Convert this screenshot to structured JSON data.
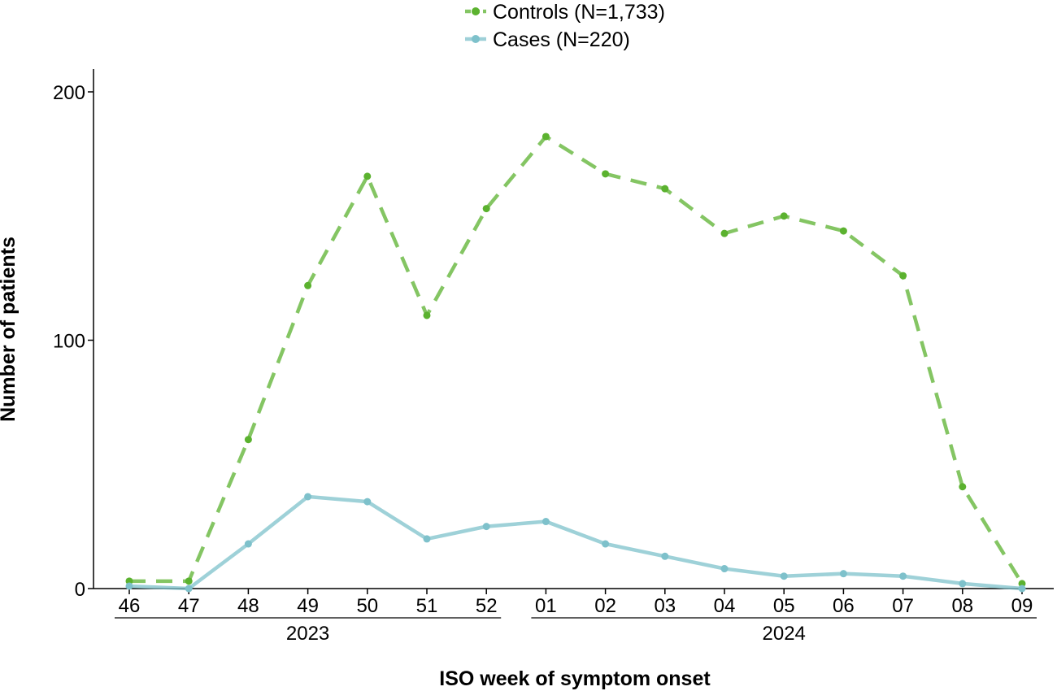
{
  "chart_data": {
    "type": "line",
    "xlabel": "ISO week of symptom onset",
    "ylabel": "Number of patients",
    "ylim": [
      0,
      200
    ],
    "yticks": [
      0,
      100,
      200
    ],
    "categories": [
      "46",
      "47",
      "48",
      "49",
      "50",
      "51",
      "52",
      "01",
      "02",
      "03",
      "04",
      "05",
      "06",
      "07",
      "08",
      "09"
    ],
    "year_groups": [
      {
        "label": "2023",
        "first": "46",
        "last": "52"
      },
      {
        "label": "2024",
        "first": "01",
        "last": "09"
      }
    ],
    "grid": false,
    "legend_position": "top-center",
    "series": [
      {
        "name": "Controls (N=1,733)",
        "color": "#5bb22f",
        "style": "dashed",
        "values": [
          3,
          3,
          60,
          122,
          166,
          110,
          153,
          182,
          167,
          161,
          143,
          150,
          144,
          126,
          41,
          2
        ]
      },
      {
        "name": "Cases (N=220)",
        "color": "#7ec1cb",
        "style": "solid",
        "values": [
          1,
          0,
          18,
          37,
          35,
          20,
          25,
          27,
          18,
          13,
          8,
          5,
          6,
          5,
          2,
          0
        ]
      }
    ]
  }
}
